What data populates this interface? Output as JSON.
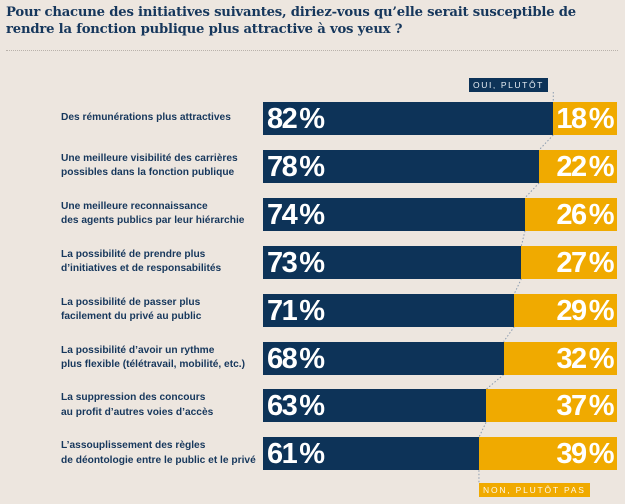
{
  "chart_data": {
    "type": "bar",
    "orientation": "horizontal-stacked-100",
    "title": "Pour chacune des initiatives suivantes, diriez-vous qu’elle serait susceptible de rendre la fonction publique plus attractive à vos yeux ?",
    "categories": [
      [
        "Des rémunérations plus attractives"
      ],
      [
        "Une meilleure visibilité des carrières",
        "possibles dans la fonction publique"
      ],
      [
        "Une meilleure reconnaissance",
        "des agents publics par leur hiérarchie"
      ],
      [
        "La possibilité de prendre plus",
        "d’initiatives et de responsabilités"
      ],
      [
        "La possibilité de passer plus",
        "facilement du privé au public"
      ],
      [
        "La possibilité d’avoir un rythme",
        "plus flexible (télétravail, mobilité, etc.)"
      ],
      [
        "La suppression des concours",
        "au profit d’autres voies d’accès"
      ],
      [
        "L’assouplissement des règles",
        "de déontologie entre le public et le privé"
      ]
    ],
    "series": [
      {
        "name": "OUI, PLUTÔT",
        "color": "#0d3358",
        "values": [
          82,
          78,
          74,
          73,
          71,
          68,
          63,
          61
        ]
      },
      {
        "name": "NON, PLUTÔT PAS",
        "color": "#f0aa00",
        "values": [
          18,
          22,
          26,
          27,
          29,
          32,
          37,
          39
        ]
      }
    ],
    "unit": "%",
    "xlim": [
      0,
      100
    ],
    "legend": [
      "top-right (OUI, PLUTÔT)",
      "bottom-right (NON, PLUTÔT PAS)"
    ],
    "grid": false
  }
}
